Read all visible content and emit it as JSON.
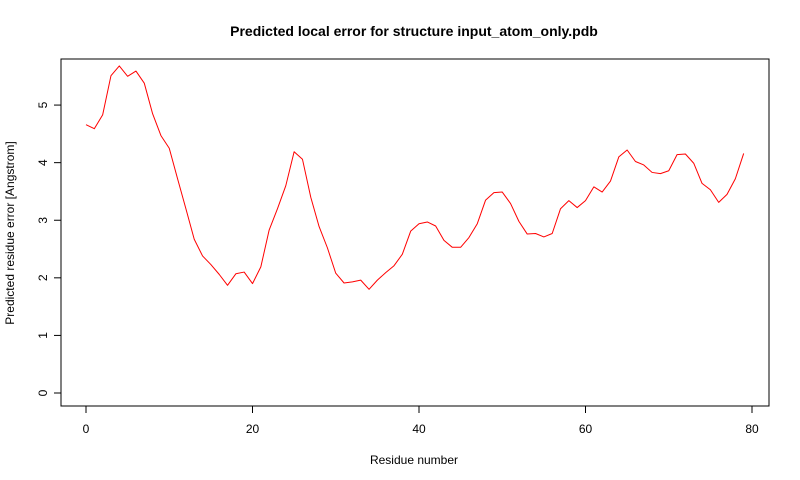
{
  "chart_data": {
    "type": "line",
    "title": "Predicted local error for structure input_atom_only.pdb",
    "xlabel": "Residue number",
    "ylabel": "Predicted residue error [Angstrom]",
    "xlim": [
      0,
      80
    ],
    "ylim": [
      0,
      5.8
    ],
    "xticks": [
      0,
      20,
      40,
      60,
      80
    ],
    "yticks": [
      0,
      1,
      2,
      3,
      4,
      5
    ],
    "grid": false,
    "line_color": "#ff0000",
    "series": [
      {
        "x": [
          0,
          1,
          2,
          3,
          4,
          5,
          6,
          7,
          8,
          9,
          10,
          11,
          12,
          13,
          14,
          15,
          16,
          17,
          18,
          19,
          20,
          21,
          22,
          23,
          24,
          25,
          26,
          27,
          28,
          29,
          30,
          31,
          32,
          33,
          34,
          35,
          36,
          37,
          38,
          39,
          40,
          41,
          42,
          43,
          44,
          45,
          46,
          47,
          48,
          49,
          50,
          51,
          52,
          53,
          54,
          55,
          56,
          57,
          58,
          59,
          60,
          61,
          62,
          63,
          64,
          65,
          66,
          67,
          68,
          69,
          70,
          71,
          72,
          73,
          74,
          75,
          76,
          77,
          78,
          79
        ],
        "y": [
          4.66,
          4.59,
          4.83,
          5.51,
          5.68,
          5.5,
          5.59,
          5.38,
          4.85,
          4.47,
          4.25,
          3.72,
          3.2,
          2.67,
          2.38,
          2.23,
          2.06,
          1.87,
          2.07,
          2.1,
          1.9,
          2.19,
          2.83,
          3.2,
          3.6,
          4.19,
          4.06,
          3.4,
          2.89,
          2.52,
          2.08,
          1.91,
          1.93,
          1.96,
          1.8,
          1.96,
          2.09,
          2.21,
          2.41,
          2.81,
          2.94,
          2.97,
          2.9,
          2.65,
          2.53,
          2.53,
          2.7,
          2.94,
          3.35,
          3.48,
          3.49,
          3.29,
          2.98,
          2.76,
          2.77,
          2.71,
          2.77,
          3.2,
          3.34,
          3.22,
          3.34,
          3.58,
          3.49,
          3.68,
          4.1,
          4.22,
          4.02,
          3.96,
          3.83,
          3.81,
          3.86,
          4.14,
          4.15,
          3.99,
          3.64,
          3.53,
          3.31,
          3.45,
          3.72,
          4.16
        ]
      }
    ]
  }
}
